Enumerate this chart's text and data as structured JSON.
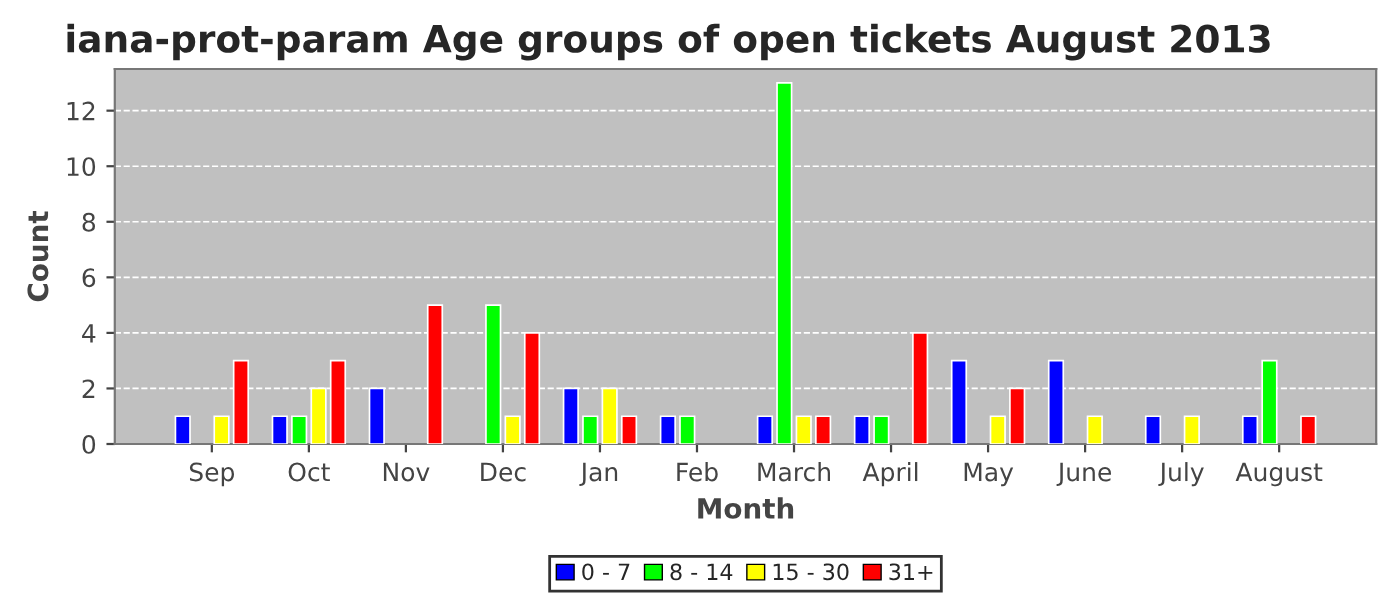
{
  "chart_data": {
    "type": "bar",
    "title": "iana-prot-param Age groups of open tickets August 2013",
    "xlabel": "Month",
    "ylabel": "Count",
    "categories": [
      "Sep",
      "Oct",
      "Nov",
      "Dec",
      "Jan",
      "Feb",
      "March",
      "April",
      "May",
      "June",
      "July",
      "August"
    ],
    "series": [
      {
        "name": "0 - 7",
        "color": "#0000ff",
        "values": [
          1,
          1,
          2,
          0,
          2,
          1,
          1,
          1,
          3,
          3,
          1,
          1
        ]
      },
      {
        "name": "8 - 14",
        "color": "#00ff00",
        "values": [
          0,
          1,
          0,
          5,
          1,
          1,
          13,
          1,
          0,
          0,
          0,
          3
        ]
      },
      {
        "name": "15 - 30",
        "color": "#ffff00",
        "values": [
          1,
          2,
          0,
          1,
          2,
          0,
          1,
          0,
          1,
          1,
          1,
          0
        ]
      },
      {
        "name": "31+",
        "color": "#ff0000",
        "values": [
          3,
          3,
          5,
          4,
          1,
          0,
          1,
          4,
          2,
          0,
          0,
          1
        ]
      }
    ],
    "ylim": [
      0,
      13.5
    ],
    "yticks": [
      0,
      2,
      4,
      6,
      8,
      10,
      12
    ],
    "grid": "y",
    "legend": "bottom"
  }
}
